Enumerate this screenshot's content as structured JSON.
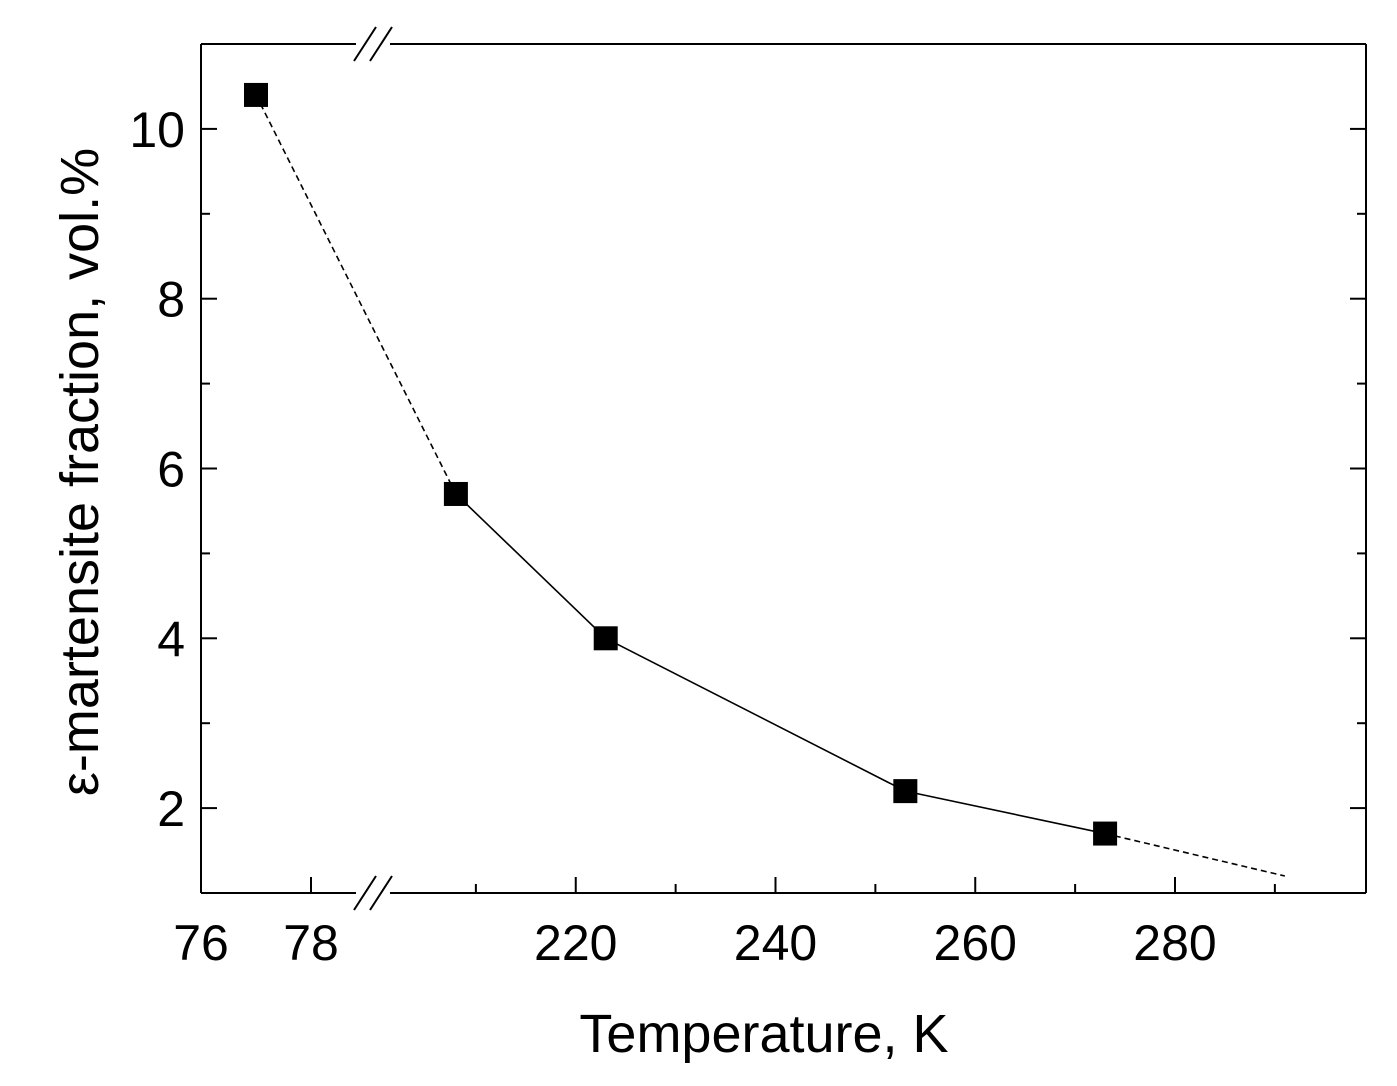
{
  "chart_data": {
    "type": "line",
    "xlabel": "Temperature, K",
    "ylabel": "ε-martensite fraction, vol.%",
    "x_axis": {
      "broken": true,
      "low_segment": {
        "range": [
          76,
          78
        ],
        "ticks": [
          76,
          78
        ]
      },
      "high_segment": {
        "range": [
          200,
          280
        ],
        "ticks": [
          220,
          240,
          260,
          280
        ]
      }
    },
    "ylim": [
      1,
      11
    ],
    "yticks": [
      2,
      4,
      6,
      8,
      10
    ],
    "grid": false,
    "legend": "none",
    "series": [
      {
        "marker": "filled-square",
        "color": "#000000",
        "points": [
          {
            "x": 77,
            "y": 10.4
          },
          {
            "x": 208,
            "y": 5.7
          },
          {
            "x": 223,
            "y": 4.0
          },
          {
            "x": 253,
            "y": 2.2
          },
          {
            "x": 273,
            "y": 1.7
          }
        ],
        "dashed_extension_points": [
          {
            "x": 273,
            "y": 1.7
          },
          {
            "x": 291,
            "y": 1.2
          }
        ]
      }
    ]
  }
}
